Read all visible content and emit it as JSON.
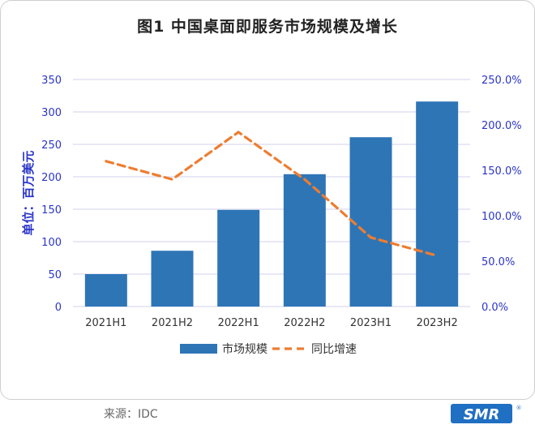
{
  "title": "图1  中国桌面即服务市场规模及增长",
  "source": "来源：IDC",
  "logo_text": "SMR",
  "chart_data": {
    "type": "bar",
    "categories": [
      "2021H1",
      "2021H2",
      "2022H1",
      "2022H2",
      "2023H1",
      "2023H2"
    ],
    "series": [
      {
        "name": "市场规模",
        "type": "bar",
        "axis": "left",
        "color": "#2e75b6",
        "values": [
          50,
          86,
          149,
          204,
          261,
          316
        ]
      },
      {
        "name": "同比增速",
        "type": "line",
        "axis": "right",
        "color": "#ed7d31",
        "dash": true,
        "values": [
          160,
          140,
          192,
          140,
          76,
          56
        ]
      }
    ],
    "ylabel": "单位：百万美元",
    "ylim": [
      0,
      350
    ],
    "yticks": [
      "0",
      "50",
      "100",
      "150",
      "200",
      "250",
      "300",
      "350"
    ],
    "y2lim": [
      0,
      250
    ],
    "y2ticks": [
      "0.0%",
      "50.0%",
      "100.0%",
      "150.0%",
      "200.0%",
      "250.0%"
    ],
    "grid": true,
    "legend": "bottom"
  }
}
